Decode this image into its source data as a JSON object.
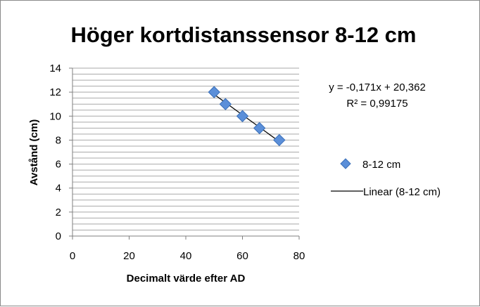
{
  "chart_data": {
    "type": "scatter",
    "title": "Höger kortdistanssensor 8-12 cm",
    "xlabel": "Decimalt värde efter AD",
    "ylabel": "Avstånd (cm)",
    "xlim": [
      0,
      80
    ],
    "ylim": [
      0,
      14
    ],
    "x_ticks": [
      "0",
      "20",
      "40",
      "60",
      "80"
    ],
    "y_ticks": [
      "0",
      "2",
      "4",
      "6",
      "8",
      "10",
      "12",
      "14"
    ],
    "grid": "horizontal",
    "series": [
      {
        "name": "8-12 cm",
        "marker": "diamond",
        "color": "#5b8fd9",
        "points": [
          {
            "x": 50,
            "y": 12
          },
          {
            "x": 54,
            "y": 11
          },
          {
            "x": 60,
            "y": 10
          },
          {
            "x": 66,
            "y": 9
          },
          {
            "x": 73,
            "y": 8
          }
        ]
      }
    ],
    "trendline": {
      "name": "Linear (8-12 cm)",
      "type": "linear",
      "slope": -0.171,
      "intercept": 20.362,
      "x_range": [
        50,
        73
      ],
      "color": "#000000"
    },
    "equation_text": "y = -0,171x + 20,362",
    "r2_text": "R² = 0,99175",
    "legend_position": "right"
  }
}
